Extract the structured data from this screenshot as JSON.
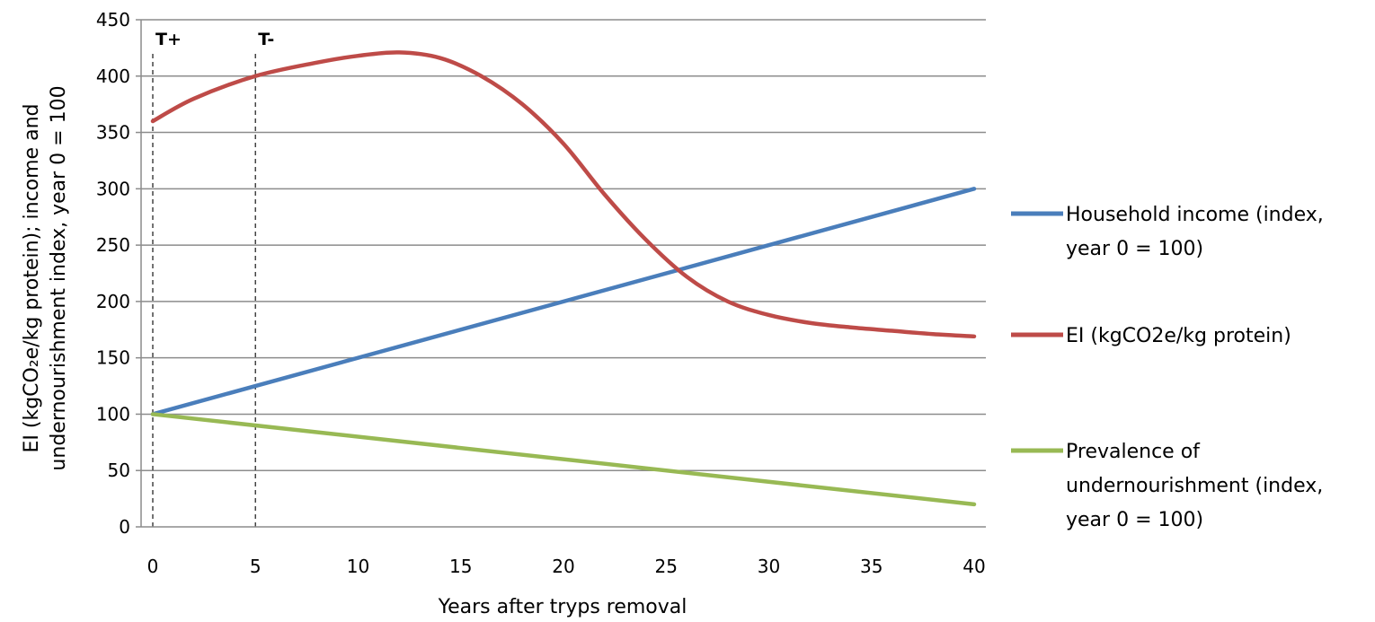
{
  "chart_data": {
    "type": "line",
    "xlabel": "Years after tryps removal",
    "ylabel_line1": "EI (kgCO₂e/kg protein); income and",
    "ylabel_line2": "undernourishment index, year 0 = 100",
    "xlim": [
      0,
      40
    ],
    "ylim": [
      0,
      450
    ],
    "x_ticks": [
      0,
      5,
      10,
      15,
      20,
      25,
      30,
      35,
      40
    ],
    "y_ticks": [
      0,
      50,
      100,
      150,
      200,
      250,
      300,
      350,
      400,
      450
    ],
    "grid": "horizontal",
    "legend_position": "right",
    "markers": [
      {
        "label": "T+",
        "x": 0
      },
      {
        "label": "T-",
        "x": 5
      }
    ],
    "series": [
      {
        "name": "Household income (index, year 0 = 100)",
        "legend_lines": [
          "Household income (index,",
          "year 0 = 100)"
        ],
        "color": "#4a7ebb",
        "x": [
          0,
          40
        ],
        "y": [
          100,
          300
        ]
      },
      {
        "name": "EI (kgCO2e/kg protein)",
        "legend_lines": [
          "EI (kgCO2e/kg protein)"
        ],
        "color": "#be4b48",
        "x": [
          0,
          2,
          5,
          8,
          10,
          12,
          14,
          16,
          18,
          20,
          22,
          24,
          26,
          28,
          30,
          32,
          34,
          36,
          38,
          40
        ],
        "y": [
          360,
          380,
          400,
          412,
          418,
          421,
          416,
          400,
          375,
          340,
          295,
          255,
          222,
          200,
          188,
          181,
          177,
          174,
          171,
          169
        ]
      },
      {
        "name": "Prevalence of undernourishment (index, year 0 = 100)",
        "legend_lines": [
          "Prevalence of",
          "undernourishment (index,",
          "year 0 = 100)"
        ],
        "color": "#98b954",
        "x": [
          0,
          40
        ],
        "y": [
          100,
          20
        ]
      }
    ]
  }
}
